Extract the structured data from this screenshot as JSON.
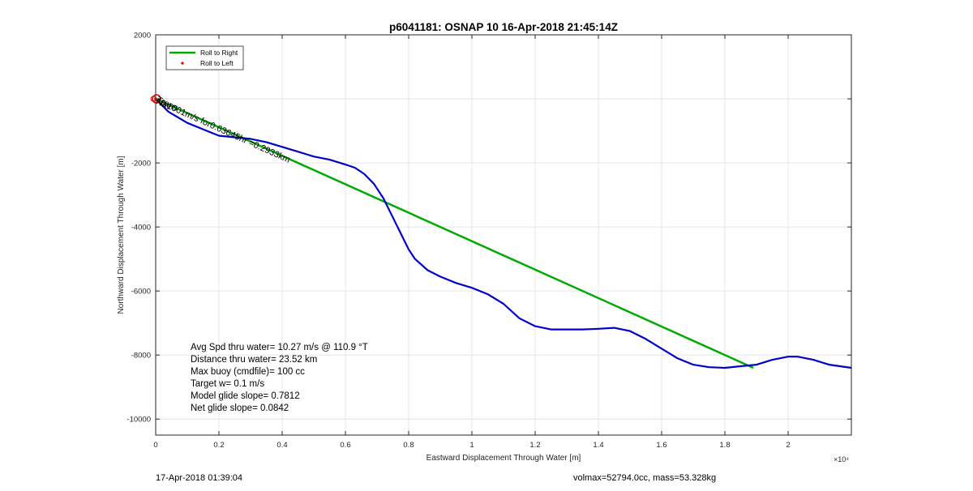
{
  "chart_data": {
    "type": "line",
    "title": "p6041181: OSNAP 10 16-Apr-2018 21:45:14Z",
    "xlabel": "Eastward Displacement Through Water [m]",
    "ylabel": "Northward Displacement Through Water [m]",
    "x_exponent_label": "×10⁴",
    "xlim": [
      0,
      22000
    ],
    "ylim": [
      -10500,
      2000
    ],
    "grid": true,
    "legend_position": "top-left",
    "x_ticks": [
      0,
      2000,
      4000,
      6000,
      8000,
      10000,
      12000,
      14000,
      16000,
      18000,
      20000
    ],
    "x_tick_labels": [
      "0",
      "0.2",
      "0.4",
      "0.6",
      "0.8",
      "1",
      "1.2",
      "1.4",
      "1.6",
      "1.8",
      "2"
    ],
    "y_ticks": [
      2000,
      0,
      -2000,
      -4000,
      -6000,
      -8000,
      -10000
    ],
    "y_tick_labels": [
      "2000",
      "",
      "-2000",
      "-4000",
      "-6000",
      "-8000",
      "-10000"
    ],
    "series": [
      {
        "name": "Roll to Right",
        "color": "#00aa00",
        "x": [
          0,
          18900
        ],
        "y": [
          0,
          -8400
        ]
      },
      {
        "name": "Roll to Left",
        "color": "#cc0000",
        "x": [
          0
        ],
        "y": [
          0
        ]
      },
      {
        "name": "",
        "color": "#0000cc",
        "x": [
          0,
          400,
          1000,
          1500,
          2000,
          2500,
          3000,
          3500,
          4000,
          4500,
          5000,
          5500,
          6000,
          6300,
          6600,
          6900,
          7200,
          7500,
          7800,
          8000,
          8200,
          8600,
          9000,
          9500,
          10000,
          10500,
          11000,
          11500,
          12000,
          12500,
          13000,
          13500,
          14000,
          14500,
          15000,
          15500,
          16000,
          16500,
          17000,
          17500,
          18000,
          18500,
          19000,
          19500,
          20000,
          20300,
          20800,
          21300,
          22000
        ],
        "y": [
          0,
          -400,
          -750,
          -950,
          -1150,
          -1200,
          -1250,
          -1350,
          -1500,
          -1650,
          -1800,
          -1900,
          -2050,
          -2150,
          -2350,
          -2650,
          -3100,
          -3700,
          -4300,
          -4700,
          -5000,
          -5350,
          -5550,
          -5750,
          -5900,
          -6100,
          -6400,
          -6850,
          -7100,
          -7200,
          -7200,
          -7200,
          -7180,
          -7150,
          -7250,
          -7500,
          -7800,
          -8100,
          -8300,
          -8380,
          -8400,
          -8350,
          -8300,
          -8150,
          -8050,
          -8050,
          -8150,
          -8300,
          -8400
        ]
      }
    ],
    "annotations": {
      "track_label": "0.1001m/s for0.63645hr =0.2933km",
      "start_labels": [
        "Trans",
        "Nav"
      ]
    },
    "stats": [
      "Avg Spd thru water= 10.27 m/s @ 110.9 °T",
      "Distance thru water= 23.52 km",
      "Max buoy (cmdfile)= 100 cc",
      "Target w= 0.1 m/s",
      "Model glide slope= 0.7812",
      "Net glide slope= 0.0842"
    ]
  },
  "footer": {
    "date": "17-Apr-2018 01:39:04",
    "volume_mass": "volmax=52794.0cc, mass=53.328kg"
  }
}
